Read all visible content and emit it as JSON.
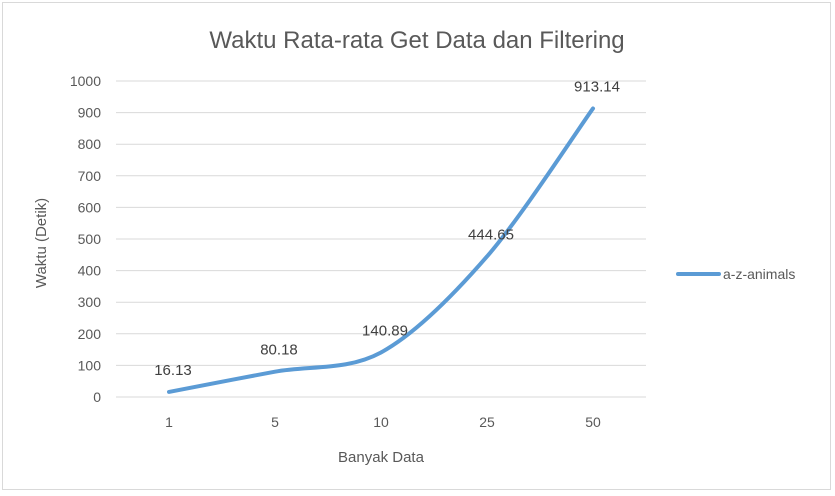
{
  "chart_data": {
    "type": "line",
    "title": "Waktu Rata-rata Get Data dan Filtering",
    "xlabel": "Banyak Data",
    "ylabel": "Waktu (Detik)",
    "categories": [
      "1",
      "5",
      "10",
      "25",
      "50"
    ],
    "series": [
      {
        "name": "a-z-animals",
        "values": [
          16.13,
          80.18,
          140.89,
          444.65,
          913.14
        ],
        "color": "#5b9bd5"
      }
    ],
    "ylim": [
      0,
      1000
    ],
    "yticks": [
      0,
      100,
      200,
      300,
      400,
      500,
      600,
      700,
      800,
      900,
      1000
    ],
    "grid": true,
    "legend": "right"
  }
}
